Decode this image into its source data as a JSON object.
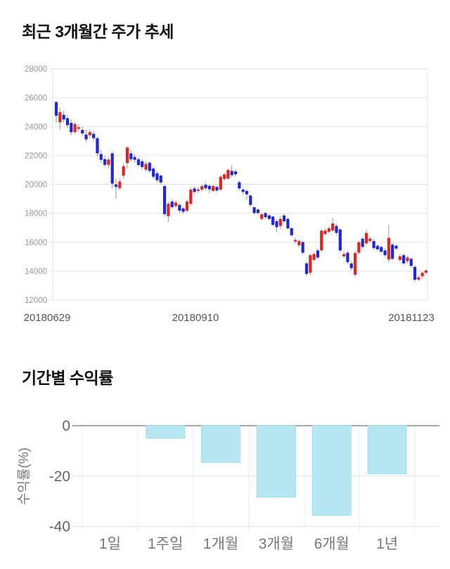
{
  "chart_data": [
    {
      "type": "candlestick",
      "title": "최근 3개월간 주가 추세",
      "x_labels": [
        "20180629",
        "20180910",
        "20181123"
      ],
      "y_ticks": [
        28000,
        26000,
        24000,
        22000,
        20000,
        18000,
        16000,
        14000,
        12000
      ],
      "ylim": [
        12000,
        28000
      ],
      "grid": true,
      "up_color": "#e02620",
      "down_color": "#2127d4",
      "wick_color": "#999999",
      "grid_color": "#e2e2e2",
      "tick_label_color": "#999999",
      "x_label_color": "#555555",
      "candles": [
        [
          25700,
          25800,
          24260,
          24750
        ],
        [
          24300,
          25310,
          23780,
          25000
        ],
        [
          24820,
          25100,
          24300,
          24500
        ],
        [
          24580,
          24800,
          23900,
          24100
        ],
        [
          24260,
          24500,
          23400,
          23610
        ],
        [
          23620,
          24300,
          23500,
          24180
        ],
        [
          23850,
          24150,
          23650,
          23950
        ],
        [
          23770,
          24000,
          23300,
          23530
        ],
        [
          23450,
          23800,
          22900,
          23120
        ],
        [
          23400,
          23800,
          23200,
          23620
        ],
        [
          23500,
          23700,
          23000,
          23200
        ],
        [
          23200,
          23300,
          21950,
          22150
        ],
        [
          22100,
          22400,
          21500,
          21700
        ],
        [
          21750,
          22000,
          21200,
          21350
        ],
        [
          21350,
          21900,
          21100,
          21720
        ],
        [
          22150,
          22300,
          19700,
          20050
        ],
        [
          20000,
          20400,
          19000,
          19820
        ],
        [
          19740,
          20400,
          19600,
          20200
        ],
        [
          20610,
          21500,
          20400,
          21260
        ],
        [
          21480,
          22650,
          21100,
          22550
        ],
        [
          22150,
          22400,
          21600,
          21740
        ],
        [
          21900,
          22100,
          21500,
          21700
        ],
        [
          21740,
          21900,
          21200,
          21340
        ],
        [
          21600,
          21750,
          21050,
          21200
        ],
        [
          21020,
          21600,
          20900,
          21420
        ],
        [
          21500,
          21600,
          20800,
          20930
        ],
        [
          21100,
          21250,
          20400,
          20530
        ],
        [
          20770,
          20900,
          20150,
          20290
        ],
        [
          20610,
          20700,
          20000,
          20130
        ],
        [
          19880,
          20000,
          17800,
          17940
        ],
        [
          17800,
          18800,
          17400,
          18660
        ],
        [
          18820,
          18950,
          18300,
          18420
        ],
        [
          18500,
          18900,
          18350,
          18740
        ],
        [
          18580,
          18700,
          18050,
          18180
        ],
        [
          18340,
          18450,
          17950,
          18100
        ],
        [
          18180,
          18950,
          18050,
          18820
        ],
        [
          18660,
          19750,
          18550,
          19640
        ],
        [
          19720,
          19850,
          19350,
          19480
        ],
        [
          19550,
          19800,
          19400,
          19650
        ],
        [
          19640,
          20000,
          19500,
          19880
        ],
        [
          19980,
          20100,
          19600,
          19740
        ],
        [
          19900,
          20000,
          19390,
          19660
        ],
        [
          19550,
          19980,
          19450,
          19880
        ],
        [
          19820,
          19920,
          19450,
          19580
        ],
        [
          19640,
          20650,
          19550,
          20530
        ],
        [
          20370,
          20800,
          20250,
          20695
        ],
        [
          20400,
          21100,
          20300,
          21000
        ],
        [
          20930,
          21340,
          20500,
          20640
        ],
        [
          20900,
          21050,
          20550,
          20700
        ],
        [
          20150,
          20250,
          19600,
          19720
        ],
        [
          19640,
          19750,
          19300,
          19480
        ],
        [
          19550,
          19650,
          18910,
          19310
        ],
        [
          19230,
          19300,
          18450,
          18580
        ],
        [
          18420,
          18500,
          17900,
          18020
        ],
        [
          18260,
          18350,
          17900,
          18020
        ],
        [
          17610,
          18050,
          17500,
          17930
        ],
        [
          18015,
          18100,
          17600,
          17730
        ],
        [
          17850,
          17950,
          17500,
          17610
        ],
        [
          17770,
          17850,
          17100,
          17200
        ],
        [
          17450,
          17550,
          16720,
          17040
        ],
        [
          17120,
          17820,
          16900,
          17610
        ],
        [
          17850,
          17950,
          17350,
          17450
        ],
        [
          17610,
          17700,
          16850,
          16960
        ],
        [
          16960,
          17050,
          16350,
          16480
        ],
        [
          16050,
          16300,
          15900,
          16160
        ],
        [
          15790,
          16200,
          15650,
          16080
        ],
        [
          16000,
          16100,
          15150,
          15270
        ],
        [
          14530,
          14650,
          13640,
          13800
        ],
        [
          13880,
          15200,
          13720,
          15100
        ],
        [
          14770,
          15300,
          14650,
          15180
        ],
        [
          15430,
          15550,
          14800,
          14940
        ],
        [
          15430,
          16900,
          15350,
          16800
        ],
        [
          16560,
          16950,
          16450,
          16800
        ],
        [
          16720,
          17100,
          16600,
          16965
        ],
        [
          16800,
          17690,
          16700,
          17290
        ],
        [
          17120,
          17250,
          16500,
          16640
        ],
        [
          16880,
          16950,
          15300,
          15430
        ],
        [
          15020,
          15350,
          14900,
          15180
        ],
        [
          15270,
          15400,
          14500,
          14620
        ],
        [
          14530,
          14650,
          14050,
          14200
        ],
        [
          13750,
          15430,
          13570,
          15250
        ],
        [
          15270,
          16100,
          15150,
          16000
        ],
        [
          16240,
          16350,
          15550,
          15670
        ],
        [
          15915,
          16880,
          15800,
          16640
        ],
        [
          16080,
          16400,
          15950,
          16240
        ],
        [
          16080,
          16200,
          15500,
          15590
        ],
        [
          15750,
          15850,
          15400,
          15510
        ],
        [
          15670,
          15750,
          15200,
          15340
        ],
        [
          15430,
          15550,
          15000,
          15100
        ],
        [
          14800,
          17200,
          14600,
          16300
        ],
        [
          15830,
          15950,
          14750,
          14850
        ],
        [
          15750,
          15850,
          15450,
          15560
        ],
        [
          14770,
          15150,
          14650,
          15020
        ],
        [
          15100,
          15200,
          14400,
          14530
        ],
        [
          14690,
          15050,
          14550,
          14940
        ],
        [
          14850,
          14950,
          14250,
          14360
        ],
        [
          14290,
          14400,
          13230,
          13400
        ],
        [
          13400,
          13700,
          13300,
          13570
        ],
        [
          13640,
          13980,
          13520,
          13880
        ],
        [
          13880,
          14150,
          13780,
          14040
        ]
      ]
    },
    {
      "type": "bar",
      "title": "기간별 수익률",
      "ylabel": "수익률(%)",
      "categories": [
        "1일",
        "1주일",
        "1개월",
        "3개월",
        "6개월",
        "1년"
      ],
      "values": [
        0,
        -5,
        -14.6,
        -28.4,
        -35.6,
        -19.1
      ],
      "y_ticks": [
        0,
        -20,
        -40
      ],
      "ylim": [
        -40,
        0
      ],
      "grid": true,
      "legend": "none",
      "bar_color": "#b7e7f2",
      "bar_border": "#a3dcea",
      "axis_color": "#8a8a8a",
      "grid_color": "#e0e0e0",
      "vgrid_color": "#ececec",
      "tick_label_color": "#666666",
      "category_label_color": "#777777"
    }
  ]
}
